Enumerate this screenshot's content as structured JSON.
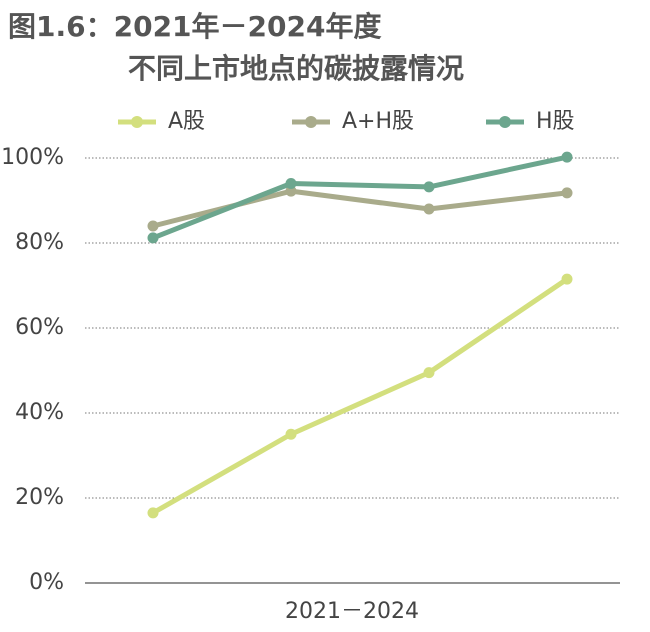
{
  "chart_data": {
    "type": "line",
    "title": "图1.6：2021年－2024年度",
    "subtitle": "不同上市地点的碳披露情况",
    "x_label": "2021－2024",
    "categories": [
      null,
      null,
      null,
      null
    ],
    "series": [
      {
        "name": "A股",
        "color": "#d3df7e",
        "values": [
          16.5,
          35,
          49.5,
          71.5
        ]
      },
      {
        "name": "A+H股",
        "color": "#a9ab8b",
        "values": [
          84,
          92.2,
          88,
          91.8
        ]
      },
      {
        "name": "H股",
        "color": "#6ca68e",
        "values": [
          81.2,
          94,
          93.2,
          100.2
        ]
      }
    ],
    "ylim": [
      0,
      100
    ],
    "yticks": [
      {
        "value": 0,
        "label": "0%"
      },
      {
        "value": 20,
        "label": "20%"
      },
      {
        "value": 40,
        "label": "40%"
      },
      {
        "value": 60,
        "label": "60%"
      },
      {
        "value": 80,
        "label": "80%"
      },
      {
        "value": 100,
        "label": "100%"
      }
    ],
    "grid": true,
    "legend": "top"
  }
}
